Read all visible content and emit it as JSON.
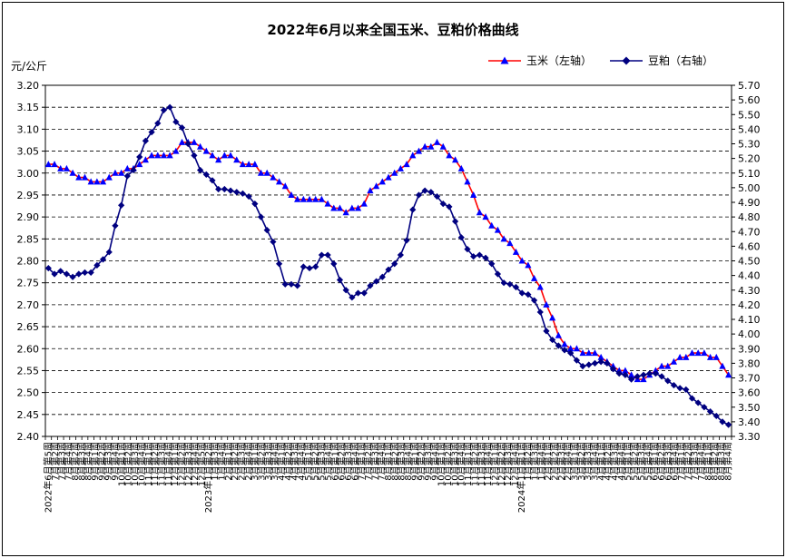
{
  "chart_data": {
    "type": "line",
    "title": "2022年6月以来全国玉米、豆粕价格曲线",
    "ylabel": "元/公斤",
    "ylim": [
      2.4,
      3.2
    ],
    "y_ticks": [
      "3.20",
      "3.15",
      "3.10",
      "3.05",
      "3.00",
      "2.95",
      "2.90",
      "2.85",
      "2.80",
      "2.75",
      "2.70",
      "2.65",
      "2.60",
      "2.55",
      "2.50",
      "2.45",
      "2.40"
    ],
    "y2lim": [
      3.3,
      5.7
    ],
    "y2_ticks": [
      "5.70",
      "5.60",
      "5.50",
      "5.40",
      "5.30",
      "5.20",
      "5.10",
      "5.00",
      "4.90",
      "4.80",
      "4.70",
      "4.60",
      "4.50",
      "4.40",
      "4.30",
      "4.20",
      "4.10",
      "4.00",
      "3.90",
      "3.80",
      "3.70",
      "3.60",
      "3.50",
      "3.40",
      "3.30"
    ],
    "grid": true,
    "legend_position": "top-right",
    "categories": [
      "2022年6月第5周",
      "7月第1周",
      "7月第2周",
      "7月第3周",
      "7月第4周",
      "8月第1周",
      "8月第2周",
      "8月第3周",
      "8月第4周",
      "9月第1周",
      "9月第2周",
      "9月第3周",
      "9月第4周",
      "10月第1周",
      "10月第2周",
      "10月第3周",
      "10月第4周",
      "11月第1周",
      "11月第2周",
      "11月第3周",
      "11月第4周",
      "12月第1周",
      "12月第2周",
      "12月第3周",
      "12月第4周",
      "12月第5周",
      "2023年1月第1周",
      "1月第2周",
      "1月第3周",
      "1月第4周",
      "2月第1周",
      "2月第2周",
      "2月第3周",
      "2月第4周",
      "3月第1周",
      "3月第2周",
      "3月第3周",
      "3月第4周",
      "3月第5周",
      "4月第1周",
      "4月第2周",
      "4月第3周",
      "4月第4周",
      "5月第1周",
      "5月第2周",
      "5月第3周",
      "5月第4周",
      "6月第1周",
      "6月第2周",
      "6月第3周",
      "6月第4周",
      "6月第5周",
      "7月第1周",
      "7月第2周",
      "7月第3周",
      "7月第4周",
      "8月第1周",
      "8月第2周",
      "8月第3周",
      "8月第4周",
      "8月第5周",
      "9月第1周",
      "9月第2周",
      "9月第3周",
      "9月第4周",
      "10月第1周",
      "10月第2周",
      "10月第3周",
      "10月第4周",
      "11月第1周",
      "11月第2周",
      "11月第3周",
      "11月第4周",
      "11月第5周",
      "12月第1周",
      "12月第2周",
      "12月第3周",
      "12月第4周",
      "2024年1月第1周",
      "1月第2周",
      "1月第3周",
      "1月第4周",
      "1月第5周",
      "2月第1周",
      "2月第2周",
      "2月第3周",
      "2月第4周",
      "3月第1周",
      "3月第2周",
      "3月第3周",
      "3月第4周",
      "4月第1周",
      "4月第2周",
      "4月第3周",
      "4月第4周",
      "5月第1周",
      "5月第2周",
      "5月第3周",
      "5月第4周",
      "5月第5周",
      "6月第1周",
      "6月第2周",
      "6月第3周",
      "6月第4周",
      "7月第1周",
      "7月第2周",
      "7月第3周",
      "7月第4周",
      "7月第5周",
      "8月第1周",
      "8月第2周",
      "8月第3周",
      "8月第4周"
    ],
    "x_tick_labels": [
      "2022年6月第5周",
      "7月第2周",
      "7月第3周",
      "7月第4周",
      "8月第2周",
      "8月第3周",
      "8月第4周",
      "9月第1周",
      "9月第2周",
      "9月第3周",
      "9月第4周",
      "10月第1周",
      "10月第2周",
      "10月第3周",
      "10月第4周",
      "11月第1周",
      "11月第2周",
      "11月第3周",
      "11月第4周",
      "12月第1周",
      "12月第2周",
      "12月第3周",
      "12月第4周",
      "12月第5周",
      "2023年1月第2周",
      "1月第3周",
      "1月第4周",
      "2月第1周",
      "2月第2周",
      "2月第3周",
      "2月第4周",
      "3月第1周",
      "3月第2周",
      "3月第3周",
      "3月第4周",
      "4月第1周",
      "4月第2周",
      "4月第3周",
      "4月第4周",
      "5月第1周",
      "5月第2周",
      "5月第3周",
      "5月第4周",
      "6月第1周",
      "6月第2周",
      "6月第3周",
      "6月第4周",
      "7月第1周",
      "7月第2周",
      "7月第3周",
      "7月第4周",
      "8月第1周",
      "8月第2周",
      "8月第3周",
      "8月第4周",
      "9月第1周",
      "9月第2周",
      "9月第3周",
      "9月第4周",
      "10月第1周",
      "10月第2周",
      "10月第3周",
      "10月第4周",
      "11月第1周",
      "11月第2周",
      "11月第3周",
      "11月第4周",
      "12月第1周",
      "12月第2周",
      "12月第3周",
      "12月第4周",
      "2024年1月第1周",
      "1月第2周",
      "1月第3周",
      "1月第4周",
      "2月第1周",
      "2月第2周",
      "2月第3周",
      "2月第4周",
      "3月第1周",
      "3月第2周",
      "3月第3周",
      "3月第4周",
      "4月第1周",
      "4月第2周",
      "4月第3周",
      "4月第4周",
      "5月第1周",
      "5月第2周",
      "5月第3周",
      "5月第4周",
      "6月第1周",
      "6月第2周",
      "6月第3周",
      "6月第4周",
      "7月第1周",
      "7月第2周",
      "7月第3周",
      "7月第4周",
      "8月第1周",
      "8月第2周",
      "8月第3周",
      "8月第4周"
    ],
    "series": [
      {
        "name": "玉米（左轴）",
        "axis": "left",
        "line_color": "#ff0000",
        "marker_color": "#0000ff",
        "marker": "triangle",
        "values": [
          3.02,
          3.02,
          3.01,
          3.01,
          3.0,
          2.99,
          2.99,
          2.98,
          2.98,
          2.98,
          2.99,
          3.0,
          3.0,
          3.01,
          3.01,
          3.02,
          3.03,
          3.04,
          3.04,
          3.04,
          3.04,
          3.05,
          3.07,
          3.07,
          3.07,
          3.06,
          3.05,
          3.04,
          3.03,
          3.04,
          3.04,
          3.03,
          3.02,
          3.02,
          3.02,
          3.0,
          3.0,
          2.99,
          2.98,
          2.97,
          2.95,
          2.94,
          2.94,
          2.94,
          2.94,
          2.94,
          2.93,
          2.92,
          2.92,
          2.91,
          2.92,
          2.92,
          2.93,
          2.96,
          2.97,
          2.98,
          2.99,
          3.0,
          3.01,
          3.02,
          3.04,
          3.05,
          3.06,
          3.06,
          3.07,
          3.06,
          3.04,
          3.03,
          3.01,
          2.98,
          2.95,
          2.91,
          2.9,
          2.88,
          2.87,
          2.85,
          2.84,
          2.82,
          2.8,
          2.79,
          2.76,
          2.74,
          2.7,
          2.67,
          2.63,
          2.61,
          2.6,
          2.6,
          2.59,
          2.59,
          2.59,
          2.58,
          2.57,
          2.56,
          2.55,
          2.55,
          2.54,
          2.53,
          2.53,
          2.54,
          2.55,
          2.56,
          2.56,
          2.57,
          2.58,
          2.58,
          2.59,
          2.59,
          2.59,
          2.58,
          2.58,
          2.56,
          2.54
        ]
      },
      {
        "name": "豆粕（右轴）",
        "axis": "right",
        "line_color": "#000080",
        "marker_color": "#000080",
        "marker": "diamond",
        "values": [
          4.45,
          4.41,
          4.43,
          4.41,
          4.39,
          4.41,
          4.42,
          4.42,
          4.47,
          4.51,
          4.56,
          4.74,
          4.88,
          5.08,
          5.12,
          5.21,
          5.32,
          5.38,
          5.44,
          5.53,
          5.55,
          5.45,
          5.41,
          5.3,
          5.22,
          5.12,
          5.09,
          5.05,
          4.99,
          4.99,
          4.98,
          4.97,
          4.96,
          4.94,
          4.89,
          4.8,
          4.71,
          4.63,
          4.48,
          4.34,
          4.34,
          4.33,
          4.46,
          4.45,
          4.46,
          4.54,
          4.54,
          4.48,
          4.37,
          4.3,
          4.25,
          4.28,
          4.28,
          4.33,
          4.36,
          4.39,
          4.44,
          4.48,
          4.54,
          4.64,
          4.85,
          4.95,
          4.98,
          4.97,
          4.94,
          4.89,
          4.87,
          4.77,
          4.66,
          4.58,
          4.53,
          4.54,
          4.52,
          4.48,
          4.41,
          4.35,
          4.34,
          4.32,
          4.28,
          4.27,
          4.23,
          4.15,
          4.02,
          3.96,
          3.92,
          3.89,
          3.87,
          3.82,
          3.78,
          3.79,
          3.8,
          3.81,
          3.8,
          3.76,
          3.73,
          3.72,
          3.69,
          3.71,
          3.72,
          3.73,
          3.73,
          3.71,
          3.68,
          3.65,
          3.63,
          3.62,
          3.56,
          3.53,
          3.5,
          3.47,
          3.44,
          3.4,
          3.38
        ]
      }
    ]
  }
}
